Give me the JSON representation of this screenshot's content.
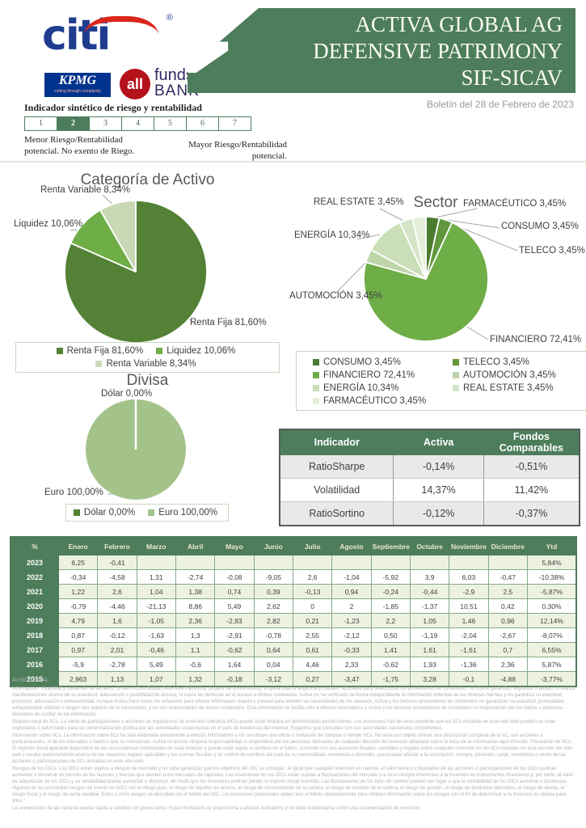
{
  "header": {
    "citi": "citi",
    "citi_r": "®",
    "kpmg": "KPMG",
    "kpmg_tagline": "cutting through complexity",
    "allfunds_circle": "all",
    "allfunds_funds": "funds",
    "allfunds_bank": "BANK",
    "title_line1": "ACTIVA GLOBAL AG",
    "title_line2": "DEFENSIVE PATRIMONY",
    "title_line3": "SIF-SICAV",
    "bulletin_date": "Boletín del 28 de Febrero de 2023"
  },
  "risk_indicator": {
    "title": "Indicador sintético de riesgo y rentabilidad",
    "levels": [
      "1",
      "2",
      "3",
      "4",
      "5",
      "6",
      "7"
    ],
    "selected": "2",
    "left_caption": "Menor Riesgo/Rentabilidad potencial. No exento de Riego.",
    "right_caption": "Mayor Riesgo/Rentabilidad potencial."
  },
  "chart_data": [
    {
      "type": "pie",
      "title": "Categoría de Activo",
      "legend_position": "bottom",
      "slices": [
        {
          "label": "Renta Fija",
          "value": 81.6,
          "display": "Renta Fija 81,60%",
          "color": "#538135"
        },
        {
          "label": "Liquidez",
          "value": 10.06,
          "display": "Liquidez 10,06%",
          "color": "#6fad47"
        },
        {
          "label": "Renta Variable",
          "value": 8.34,
          "display": "Renta Variable 8,34%",
          "color": "#c9d9b5"
        }
      ]
    },
    {
      "type": "pie",
      "title": "Sector",
      "legend_position": "bottom",
      "slices": [
        {
          "label": "CONSUMO",
          "value": 3.45,
          "display": "CONSUMO 3,45%",
          "color": "#4a7b2f"
        },
        {
          "label": "TELECO",
          "value": 3.45,
          "display": "TELECO 3,45%",
          "color": "#61973c"
        },
        {
          "label": "FINANCIERO",
          "value": 72.41,
          "display": "FINANCIERO 72,41%",
          "color": "#6fad47"
        },
        {
          "label": "AUTOMOCIÓN",
          "value": 3.45,
          "display": "AUTOMOCIÓN 3,45%",
          "color": "#bdd5a9"
        },
        {
          "label": "ENERGÍA",
          "value": 10.34,
          "display": "ENERGÍA  10,34%",
          "color": "#cadfb8"
        },
        {
          "label": "REAL ESTATE",
          "value": 3.45,
          "display": "REAL ESTATE 3,45%",
          "color": "#d6e5c8"
        },
        {
          "label": "FARMACÉUTICO",
          "value": 3.45,
          "display": "FARMACÉUTICO 3,45%",
          "color": "#e4eed9"
        }
      ]
    },
    {
      "type": "pie",
      "title": "Divisa",
      "legend_position": "bottom",
      "slices": [
        {
          "label": "Dólar",
          "value": 0.0,
          "display": "Dólar 0,00%",
          "color": "#538135"
        },
        {
          "label": "Euro",
          "value": 100.0,
          "display": "Euro 100,00%",
          "color": "#a4c38a"
        }
      ]
    }
  ],
  "indicator_table": {
    "headers": [
      "Indicador",
      "Activa",
      "Fondos Comparables"
    ],
    "rows": [
      [
        "RatioSharpe",
        "-0,14%",
        "-0,51%"
      ],
      [
        "Volatilidad",
        "14,37%",
        "11,42%"
      ],
      [
        "RatioSortino",
        "-0,12%",
        "-0,37%"
      ]
    ]
  },
  "monthly_table": {
    "headers": [
      "%",
      "Enero",
      "Febrero",
      "Marzo",
      "Abril",
      "Mayo",
      "Junio",
      "Julio",
      "Agosto",
      "Septiembre",
      "Octubre",
      "Noviembre",
      "Diciembre",
      "Ytd"
    ],
    "rows": [
      {
        "year": "2023",
        "values": [
          "6,25",
          "-0,41",
          "",
          "",
          "",
          "",
          "",
          "",
          "",
          "",
          "",
          ""
        ],
        "ytd": "5,84%"
      },
      {
        "year": "2022",
        "values": [
          "-0,34",
          "-4,58",
          "1,31",
          "-2,74",
          "-0,08",
          "-9,05",
          "2,6",
          "-1,04",
          "-5,92",
          "3,9",
          "6,03",
          "-0,47"
        ],
        "ytd": "-10,38%"
      },
      {
        "year": "2021",
        "values": [
          "1,22",
          "2,6",
          "1,04",
          "1,38",
          "0,74",
          "0,39",
          "-0,13",
          "0,94",
          "-0,24",
          "-0,44",
          "-2,9",
          "2,5"
        ],
        "ytd": "-5,87%"
      },
      {
        "year": "2020",
        "values": [
          "-0,79",
          "-4,46",
          "-21,13",
          "8,86",
          "5,49",
          "2,62",
          "0",
          "2",
          "-1,85",
          "-1,37",
          "10,51",
          "0,42"
        ],
        "ytd": "0,30%"
      },
      {
        "year": "2019",
        "values": [
          "4,79",
          "1,6",
          "-1,05",
          "2,36",
          "-2,83",
          "2,82",
          "0,21",
          "-1,23",
          "2,2",
          "1,05",
          "1,46",
          "0,96"
        ],
        "ytd": "12,14%"
      },
      {
        "year": "2018",
        "values": [
          "0,87",
          "-0,12",
          "-1,63",
          "1,3",
          "-2,91",
          "-0,78",
          "2,55",
          "-2,12",
          "0,50",
          "-1,19",
          "-2,04",
          "-2,67"
        ],
        "ytd": "-8,07%"
      },
      {
        "year": "2017",
        "values": [
          "0,97",
          "2,01",
          "-0,46",
          "1,1",
          "-0,62",
          "0,64",
          "0,61",
          "-0,33",
          "1,41",
          "1,61",
          "-1,61",
          "0,7"
        ],
        "ytd": "6,55%"
      },
      {
        "year": "2016",
        "values": [
          "-5,9",
          "-2,78",
          "5,49",
          "-0,6",
          "1,64",
          "0,04",
          "4,46",
          "2,33",
          "-0,62",
          "1,93",
          "-1,36",
          "2,36"
        ],
        "ytd": "5,87%"
      },
      {
        "year": "2015",
        "values": [
          "2,963",
          "1,13",
          "1,07",
          "1,32",
          "-0,18",
          "-3,12",
          "0,27",
          "-3,47",
          "-1,75",
          "3,28",
          "-0,1",
          "-4,88"
        ],
        "ytd": "-3,77%"
      }
    ]
  },
  "legal": {
    "title": "AVISO LEGAL",
    "paragraphs": [
      "Información - Exactitud y contenido de terceros. Si bien Activa Global Defensive Patrimony (a partir de ahora Activa), emplea toda la diligencia y cuidado razonable para seleccionar los proveedores de contenidos, no ofrece garantías, expresas o tácitas, ni realiza manifestaciones acerca de su exactitud, adecuación o posibilidad de acceso, ni sobre las demoras en el acceso a dichos contenidos. Activa no ha verificado de forma independiente la información obtenida de las distintas fuentes y no garantiza su exactitud, precisión, adecuación o exhaustividad. Aunque Activa hace todos los esfuerzos para ofrecer información exacta y puntual para atender las necesidades de los usuarios, Activa y los terceros proveedores de contenidos no garantizan su exactitud, puntualidad, exhaustividad, utilidad o ningún otro aspecto de la información, y no son responsables de dichos contenidos. Esta información se facilita sólo a efectos informativos y Activa y los terceros proveedores de contenidos no responderán por los daños o perjuicios derivados de confiar en tal información.",
      "Registro local de IICs. La venta de participaciones o acciones de organismos de inversión colectiva (IICs) puede estar limitada en determinadas jurisdicciones. Los inversores han de tener presente que las IICs incluidas en este sitio web pueden no estar registrados o autorizados para su comercialización pública por las autoridades supervisoras en el país de residencia del inversor. Rogamos que consulten con sus autoridades nacionales competentes.",
      "Información sobre IICs. La información sobre IICs ha sido elaborada únicamente a efectos informativos y no constituye una oferta o invitación de comprar o vender IICs. No tiene por objeto ofrecer una descripción completa de la IIC, sus acciones o participaciones, ni de los mercados o hechos que se mencionan. Activa no asume ninguna responsabilidad ni responderá por los perjuicios derivados de cualquier decisión de inversión adoptada sobre la base de la información aquí ofrecida. Tributación de IICs: El régimen fiscal aplicable dependerá de las circunstancias individuales de cada inversor y puede estar sujeto a cambios en el futuro. Consulte con sus asesores fiscales, contables y legales sobre cualquier inversión en las IICs incluidas en esta sección del sitio web y recabe asesoramiento acerca de los requisitos legales aplicables y las normas fiscales y de control de cambios del país de su nacionalidad, residencia o domicilio, que puedan afectar a la suscripción, compra, posesión, canje, reembolso o venta de las acciones o participaciones de IICs incluidas en este sitio web.",
      "Riesgos de los OICs. Los OICs están sujetos a riesgos de mercado y no cabe garantizar que los objetivos del OIC se consigan. Al igual que cualquier inversión en valores, el valor teórico o liquidativo de las acciones o participaciones de los OICs podrían aumentar o disminuir en función de los factores y fuerzas que afecten a los mercados de capitales. Las inversiones en los OICs están sujetas a fluctuaciones del mercado y a otros riesgos inherentes a la inversión en instrumentos financieros y, por tanto, el valor de adquisición de los OICs y su rentabilidad puede aumentar o disminuir, de modo que los inversores podrían perder el importe inicial invertido. Las fluctuaciones de los tipos de cambio pueden dar lugar a que la rentabilidad de los OICs aumente o disminuya. Algunos de los principales riesgos de invertir en OICs son el riesgo país, el riesgo de liquidez de activos, el riesgo de concentración de la cartera, el riesgo de rotación de la cartera, el riesgo de gestión, el riesgo de productos derivados, el riesgo de deuda, el riesgo fiscal y el riesgo de renta variable. Estos y otros riesgos se describen en el folleto del OIC. Los inversores potenciales deben leer el folleto detenidamente para obtener información sobre los riesgos con el fin de determinar si la inversión es idónea para ellos.\"",
      "La composición de las carteras queda sujeta a cambios sin previo aviso. Esta información se proporciona a efectos ilustrativos y no debe interpretarse como una recomendación de inversión."
    ]
  }
}
